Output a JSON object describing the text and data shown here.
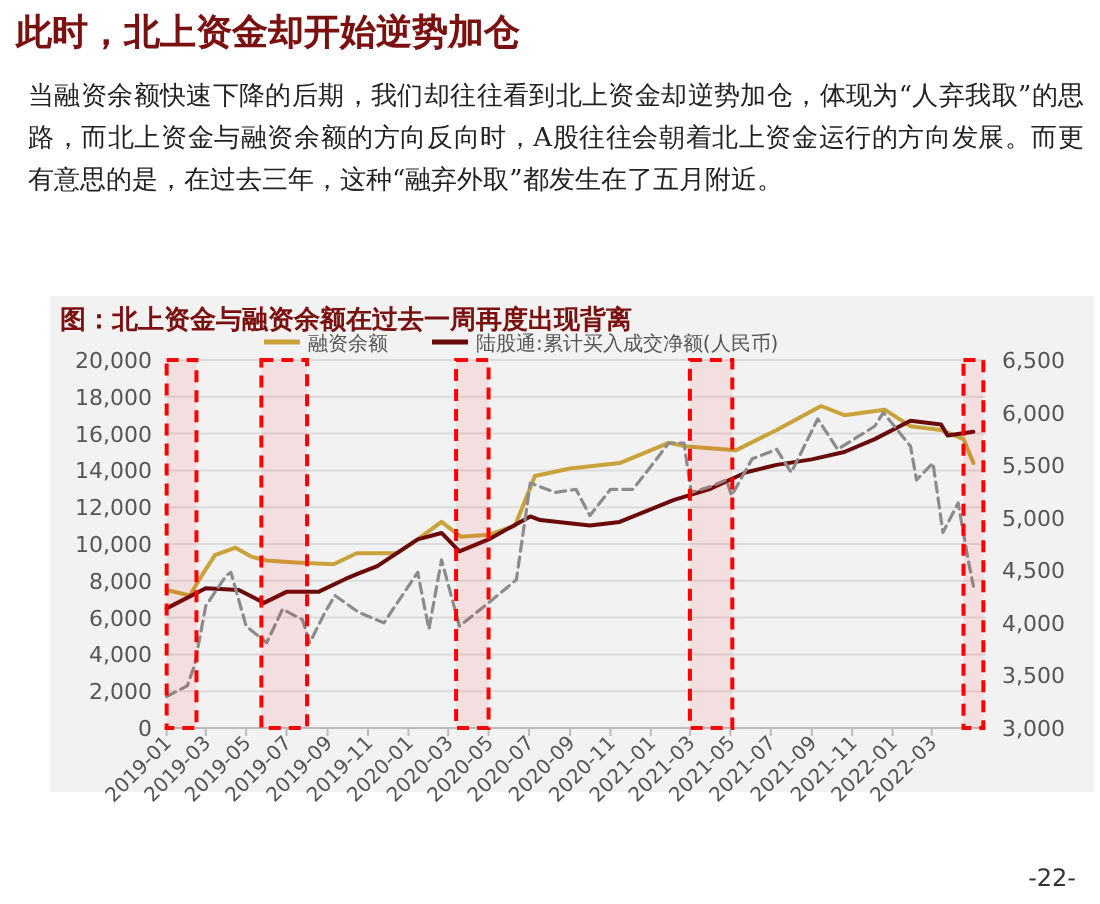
{
  "chart_data": {
    "type": "line",
    "title": "此时，北上资金却开始逆势加仓",
    "subtitle": "图：北上资金与融资余额在过去一周再度出现背离",
    "annotations": [
      "当融资余额快速下降的后期，我们却往往看到北上资金却逆势加仓，体现为“人弃我取”的思路，而北上资金与融资余额的方向反向时，A股往往会朝着北上资金运行的方向发展。而更有意思的是，在过去三年，这种“融弃外取”都发生在了五月附近。",
      "-22-"
    ],
    "series": [
      {
        "name": "融资余额",
        "color": "#c9a23a",
        "x": [
          "2019-01-01",
          "2019-02-05",
          "2019-02-25",
          "2019-03-15",
          "2019-04-15",
          "2019-05-10",
          "2019-06-01",
          "2019-07-15",
          "2019-09-10",
          "2019-10-15",
          "2019-12-15",
          "2020-01-15",
          "2020-02-20",
          "2020-03-20",
          "2020-05-01",
          "2020-06-10",
          "2020-07-10",
          "2020-09-01",
          "2020-11-15",
          "2021-01-28",
          "2021-02-25",
          "2021-05-10",
          "2021-07-10",
          "2021-09-15",
          "2021-10-20",
          "2021-12-20",
          "2022-01-28",
          "2022-03-15",
          "2022-04-18",
          "2022-05-03"
        ],
        "values": [
          7500,
          7200,
          8400,
          9400,
          9800,
          9300,
          9100,
          9000,
          8900,
          9500,
          9500,
          10250,
          11200,
          10400,
          10500,
          11000,
          13700,
          14100,
          14400,
          15500,
          15300,
          15100,
          16200,
          17500,
          17000,
          17300,
          16400,
          16200,
          15700,
          14400
        ]
      },
      {
        "name": "陆股通:累计买入成交净额(人民币)",
        "color": "#6b0a0a",
        "x": [
          "2019-01-01",
          "2019-03-01",
          "2019-04-20",
          "2019-05-28",
          "2019-07-01",
          "2019-08-18",
          "2019-09-28",
          "2019-10-18",
          "2019-11-15",
          "2020-01-15",
          "2020-02-20",
          "2020-03-18",
          "2020-05-01",
          "2020-07-03",
          "2020-07-18",
          "2020-10-01",
          "2020-11-15",
          "2021-02-05",
          "2021-04-01",
          "2021-05-25",
          "2021-07-10",
          "2021-09-01",
          "2021-10-20",
          "2021-12-05",
          "2022-01-28",
          "2022-03-15",
          "2022-03-25",
          "2022-05-03"
        ],
        "values": [
          6500,
          7600,
          7500,
          6800,
          7400,
          7400,
          8100,
          8400,
          8800,
          10250,
          10600,
          9600,
          10250,
          11500,
          11300,
          11000,
          11200,
          12400,
          13000,
          13900,
          14300,
          14600,
          15000,
          15700,
          16700,
          16500,
          15900,
          16100
        ]
      },
      {
        "color": "#8c8c8c",
        "axis": "y2",
        "line_style": "dashed",
        "x": [
          "2019-01-01",
          "2019-02-01",
          "2019-02-12",
          "2019-03-01",
          "2019-04-01",
          "2019-04-08",
          "2019-05-01",
          "2019-06-01",
          "2019-06-25",
          "2019-07-25",
          "2019-08-05",
          "2019-08-28",
          "2019-09-12",
          "2019-10-18",
          "2019-11-25",
          "2020-01-15",
          "2020-02-01",
          "2020-02-20",
          "2020-03-18",
          "2020-05-01",
          "2020-06-12",
          "2020-07-03",
          "2020-08-10",
          "2020-09-10",
          "2020-10-01",
          "2020-11-01",
          "2020-12-05",
          "2021-01-05",
          "2021-01-28",
          "2021-02-20",
          "2021-03-03",
          "2021-04-03",
          "2021-04-25",
          "2021-05-03",
          "2021-06-03",
          "2021-07-10",
          "2021-08-01",
          "2021-09-10",
          "2021-10-10",
          "2021-12-05",
          "2021-12-18",
          "2022-01-28",
          "2022-02-06",
          "2022-03-03",
          "2022-03-18",
          "2022-04-10",
          "2022-04-25",
          "2022-05-03"
        ],
        "values": [
          3300,
          3400,
          3590,
          4160,
          4450,
          4480,
          3970,
          3810,
          4130,
          4030,
          3810,
          4100,
          4260,
          4100,
          4000,
          4480,
          3940,
          4600,
          3970,
          4190,
          4410,
          5330,
          5240,
          5270,
          5020,
          5270,
          5270,
          5520,
          5710,
          5710,
          5240,
          5300,
          5360,
          5210,
          5560,
          5650,
          5430,
          5940,
          5650,
          5870,
          6000,
          5680,
          5360,
          5520,
          4860,
          5140,
          4600,
          4350
        ]
      }
    ],
    "xlim": [
      "2018-12-28",
      "2022-05-22"
    ],
    "xticks": [
      "2019-01",
      "2019-03",
      "2019-05",
      "2019-07",
      "2019-09",
      "2019-11",
      "2020-01",
      "2020-03",
      "2020-05",
      "2020-07",
      "2020-09",
      "2020-11",
      "2021-01",
      "2021-03",
      "2021-05",
      "2021-07",
      "2021-09",
      "2021-11",
      "2022-01",
      "2022-03"
    ],
    "ylim": [
      0,
      20000
    ],
    "yticks": [
      {
        "value": 0,
        "label": "0"
      },
      {
        "value": 2000,
        "label": "2,000"
      },
      {
        "value": 4000,
        "label": "4,000"
      },
      {
        "value": 6000,
        "label": "6,000"
      },
      {
        "value": 8000,
        "label": "8,000"
      },
      {
        "value": 10000,
        "label": "10,000"
      },
      {
        "value": 12000,
        "label": "12,000"
      },
      {
        "value": 14000,
        "label": "14,000"
      },
      {
        "value": 16000,
        "label": "16,000"
      },
      {
        "value": 18000,
        "label": "18,000"
      },
      {
        "value": 20000,
        "label": "20,000"
      }
    ],
    "y2lim": [
      3000,
      6500
    ],
    "y2ticks": [
      {
        "value": 3000,
        "label": "3,000"
      },
      {
        "value": 3500,
        "label": "3,500"
      },
      {
        "value": 4000,
        "label": "4,000"
      },
      {
        "value": 4500,
        "label": "4,500"
      },
      {
        "value": 5000,
        "label": "5,000"
      },
      {
        "value": 5500,
        "label": "5,500"
      },
      {
        "value": 6000,
        "label": "6,000"
      },
      {
        "value": 6500,
        "label": "6,500"
      }
    ],
    "bands": [
      {
        "axis": "x",
        "from": "2019-01-01",
        "to": "2019-02-15",
        "color": "#ff0000"
      },
      {
        "axis": "x",
        "from": "2019-05-24",
        "to": "2019-08-01",
        "color": "#ff0000"
      },
      {
        "axis": "x",
        "from": "2020-03-13",
        "to": "2020-05-01",
        "color": "#ff0000"
      },
      {
        "axis": "x",
        "from": "2021-03-01",
        "to": "2021-05-04",
        "color": "#ff0000"
      },
      {
        "axis": "x",
        "from": "2022-04-18",
        "to": "2022-05-18",
        "color": "#ff0000"
      }
    ],
    "grid": "y",
    "legend": "top"
  }
}
